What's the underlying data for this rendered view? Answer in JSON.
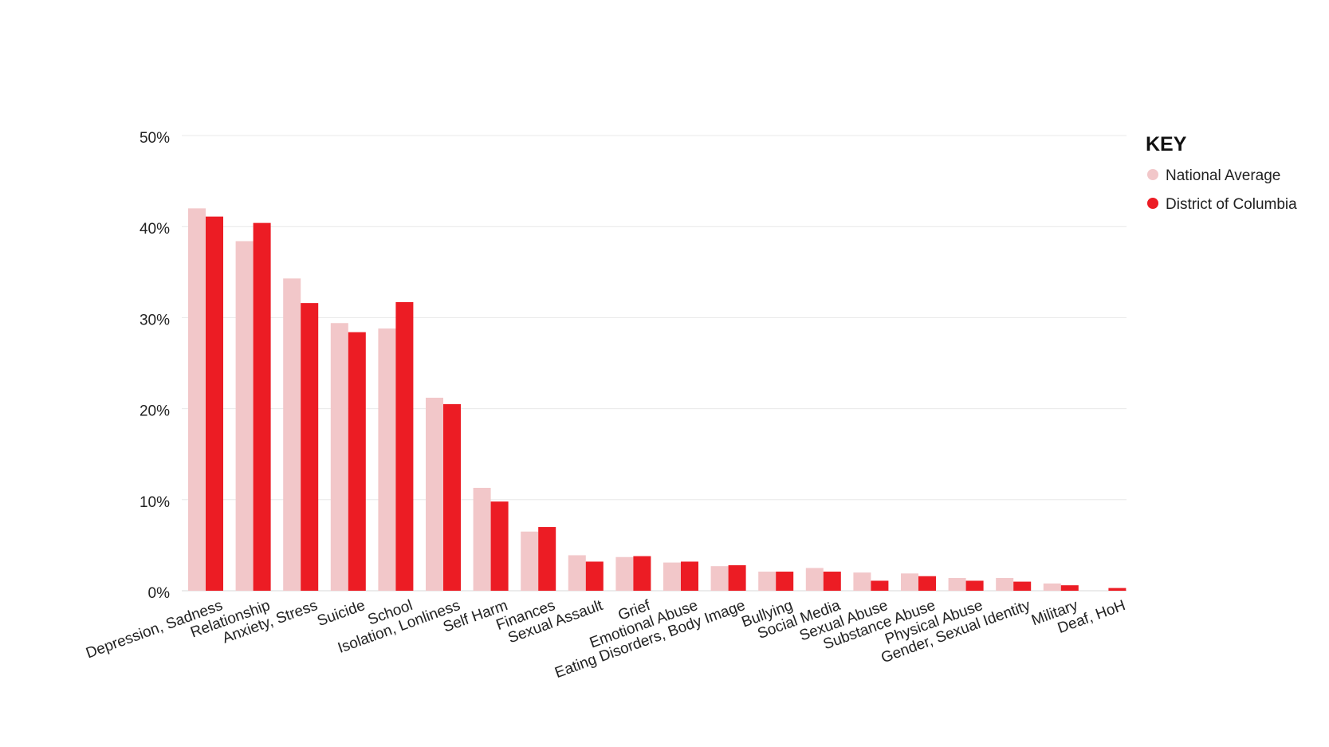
{
  "chart_data": {
    "type": "bar",
    "title": "",
    "xlabel": "",
    "ylabel": "",
    "ylim": [
      0,
      50
    ],
    "y_ticks": [
      "0%",
      "10%",
      "20%",
      "30%",
      "40%",
      "50%"
    ],
    "grid": true,
    "legend_position": "top-right",
    "legend_title": "KEY",
    "categories": [
      "Depression, Sadness",
      "Relationship",
      "Anxiety, Stress",
      "Suicide",
      "School",
      "Isolation, Lonliness",
      "Self Harm",
      "Finances",
      "Sexual Assault",
      "Grief",
      "Emotional Abuse",
      "Eating Disorders, Body Image",
      "Bullying",
      "Social Media",
      "Sexual Abuse",
      "Substance Abuse",
      "Physical Abuse",
      "Gender, Sexual Identity",
      "Military",
      "Deaf, HoH"
    ],
    "series": [
      {
        "name": "National Average",
        "color": "#f2c7c9",
        "values": [
          42,
          38.4,
          34.3,
          29.4,
          28.8,
          21.2,
          11.3,
          6.5,
          3.9,
          3.7,
          3.1,
          2.7,
          2.1,
          2.5,
          2.0,
          1.9,
          1.4,
          1.4,
          0.8,
          0
        ]
      },
      {
        "name": "District of Columbia",
        "color": "#ec1c24",
        "values": [
          41.1,
          40.4,
          31.6,
          28.4,
          31.7,
          20.5,
          9.8,
          7.0,
          3.2,
          3.8,
          3.2,
          2.8,
          2.1,
          2.1,
          1.1,
          1.6,
          1.1,
          1.0,
          0.6,
          0.3
        ]
      }
    ]
  }
}
